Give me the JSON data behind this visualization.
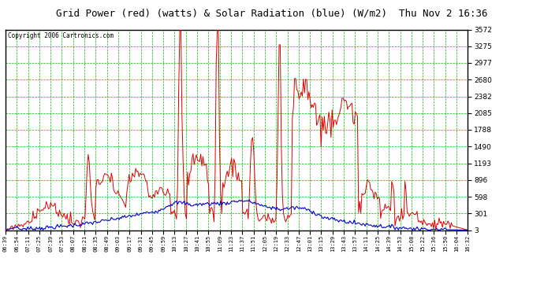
{
  "title": "Grid Power (red) (watts) & Solar Radiation (blue) (W/m2)  Thu Nov 2 16:36",
  "copyright": "Copyright 2006 Cartronics.com",
  "bg_color": "#ffffff",
  "plot_bg_color": "#ffffff",
  "grid_color": "#00bb00",
  "red_color": "#dd0000",
  "blue_color": "#0000cc",
  "ylim_min": 3.4,
  "ylim_max": 3571.9,
  "yticks": [
    3.4,
    300.8,
    598.1,
    895.5,
    1192.9,
    1490.3,
    1787.7,
    2085.0,
    2382.4,
    2679.8,
    2977.2,
    3274.6,
    3571.9
  ],
  "x_labels": [
    "06:39",
    "06:54",
    "07:11",
    "07:25",
    "07:39",
    "07:53",
    "08:07",
    "08:21",
    "08:35",
    "08:49",
    "09:03",
    "09:17",
    "09:31",
    "09:45",
    "09:59",
    "10:13",
    "10:27",
    "10:41",
    "10:55",
    "11:09",
    "11:23",
    "11:37",
    "11:51",
    "12:05",
    "12:19",
    "12:33",
    "12:47",
    "13:01",
    "13:15",
    "13:29",
    "13:43",
    "13:57",
    "14:11",
    "14:25",
    "14:39",
    "14:53",
    "15:08",
    "15:22",
    "15:36",
    "15:50",
    "16:04",
    "16:32"
  ]
}
